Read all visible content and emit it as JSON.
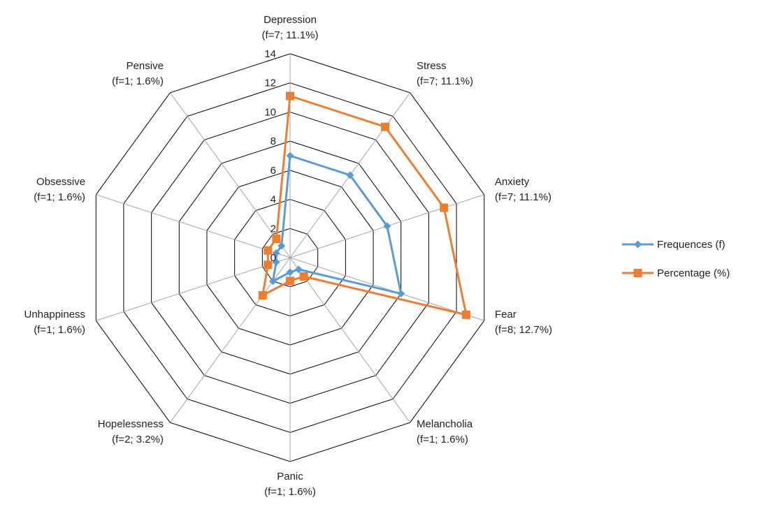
{
  "chart_data": {
    "type": "radar",
    "categories": [
      "Depression",
      "Stress",
      "Anxiety",
      "Fear",
      "Melancholia",
      "Panic",
      "Hopelessness",
      "Unhappiness",
      "Obsessive",
      "Pensive"
    ],
    "category_sublabels": [
      "(f=7; 11.1%)",
      "(f=7; 11.1%)",
      "(f=7; 11.1%)",
      "(f=8; 12.7%)",
      "(f=1; 1.6%)",
      "(f=1; 1.6%)",
      "(f=2; 3.2%)",
      "(f=1; 1.6%)",
      "(f=1; 1.6%)",
      "(f=1; 1.6%)"
    ],
    "axis": {
      "min": 0,
      "max": 14,
      "ticks": [
        0,
        2,
        4,
        6,
        8,
        10,
        12,
        14
      ]
    },
    "series": [
      {
        "name": "Frequences (f)",
        "color": "#5B9BD5",
        "marker": "diamond",
        "values": [
          7,
          7,
          7,
          8,
          1,
          1,
          2,
          1,
          1,
          1
        ]
      },
      {
        "name": "Percentage (%)",
        "color": "#ED7D31",
        "marker": "square",
        "values": [
          11.1,
          11.1,
          11.1,
          12.7,
          1.6,
          1.6,
          3.2,
          1.6,
          1.6,
          1.6
        ]
      }
    ],
    "legend_position": "right",
    "grid": true
  }
}
